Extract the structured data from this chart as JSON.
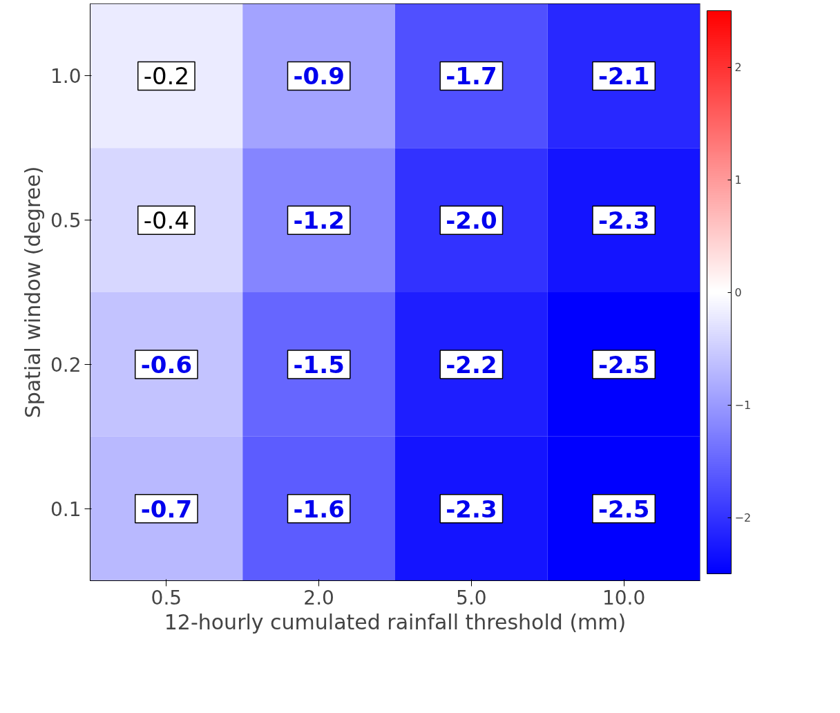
{
  "chart_data": {
    "type": "heatmap",
    "xlabel": "12-hourly cumulated rainfall threshold (mm)",
    "ylabel": "Spatial window (degree)",
    "categories": [
      "0.5",
      "2.0",
      "5.0",
      "10.0"
    ],
    "y_categories": [
      "1.0",
      "0.5",
      "0.2",
      "0.1"
    ],
    "cells": [
      [
        -0.2,
        -0.9,
        -1.7,
        -2.1
      ],
      [
        -0.4,
        -1.2,
        -2.0,
        -2.3
      ],
      [
        -0.6,
        -1.5,
        -2.2,
        -2.5
      ],
      [
        -0.7,
        -1.6,
        -2.3,
        -2.5
      ]
    ],
    "cell_labels": [
      [
        "-0.2",
        "-0.9",
        "-1.7",
        "-2.1"
      ],
      [
        "-0.4",
        "-1.2",
        "-2.0",
        "-2.3"
      ],
      [
        "-0.6",
        "-1.5",
        "-2.2",
        "-2.5"
      ],
      [
        "-0.7",
        "-1.6",
        "-2.3",
        "-2.5"
      ]
    ],
    "clim": [
      -2.5,
      2.5
    ],
    "cticks": [
      -2,
      -1,
      0,
      1,
      2
    ],
    "data_labels": true
  }
}
